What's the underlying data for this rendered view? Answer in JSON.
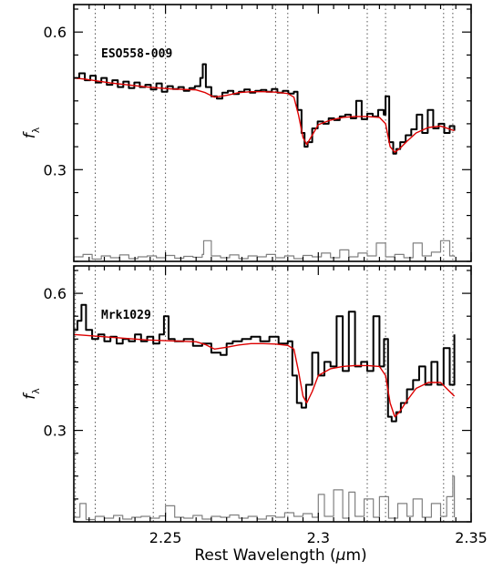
{
  "chart_data": [
    {
      "type": "line",
      "label": "ESO558-009",
      "ylabel": "fλ",
      "ylabel_main": "f",
      "ylabel_sub": "λ",
      "xlim": [
        2.22,
        2.35
      ],
      "ylim": [
        0.1,
        0.66
      ],
      "yticks": [
        0.3,
        0.6
      ],
      "ytick_labels": [
        "0.3",
        "0.6"
      ],
      "vlines": [
        2.227,
        2.246,
        2.25,
        2.286,
        2.29,
        2.316,
        2.322,
        2.341,
        2.344
      ],
      "series": [
        {
          "color": "#000000",
          "x": [
            2.22,
            2.2218,
            2.2236,
            2.2254,
            2.2272,
            2.229,
            2.2308,
            2.2326,
            2.2344,
            2.2362,
            2.238,
            2.2398,
            2.2416,
            2.2434,
            2.2452,
            2.247,
            2.2488,
            2.2506,
            2.2524,
            2.2542,
            2.256,
            2.2578,
            2.2596,
            2.2614,
            2.2622,
            2.2632,
            2.265,
            2.2668,
            2.2686,
            2.2704,
            2.2722,
            2.274,
            2.2758,
            2.2776,
            2.2794,
            2.2812,
            2.283,
            2.2848,
            2.2866,
            2.2884,
            2.2902,
            2.292,
            2.2932,
            2.2945,
            2.2955,
            2.2965,
            2.298,
            2.2998,
            2.3016,
            2.3034,
            2.3052,
            2.307,
            2.3088,
            2.3106,
            2.3124,
            2.3142,
            2.316,
            2.3178,
            2.3196,
            2.3214,
            2.322,
            2.3232,
            2.3245,
            2.3255,
            2.3268,
            2.3286,
            2.3304,
            2.3322,
            2.334,
            2.3358,
            2.3376,
            2.3394,
            2.3412,
            2.343,
            2.3445
          ],
          "y": [
            0.5,
            0.51,
            0.495,
            0.505,
            0.49,
            0.5,
            0.485,
            0.495,
            0.48,
            0.492,
            0.478,
            0.49,
            0.48,
            0.485,
            0.475,
            0.488,
            0.47,
            0.482,
            0.476,
            0.48,
            0.472,
            0.478,
            0.482,
            0.5,
            0.53,
            0.48,
            0.46,
            0.455,
            0.468,
            0.472,
            0.465,
            0.47,
            0.475,
            0.468,
            0.472,
            0.474,
            0.47,
            0.476,
            0.468,
            0.472,
            0.466,
            0.47,
            0.43,
            0.38,
            0.35,
            0.36,
            0.39,
            0.405,
            0.4,
            0.412,
            0.408,
            0.416,
            0.42,
            0.412,
            0.45,
            0.41,
            0.422,
            0.416,
            0.43,
            0.42,
            0.46,
            0.36,
            0.335,
            0.345,
            0.36,
            0.375,
            0.388,
            0.42,
            0.38,
            0.43,
            0.39,
            0.4,
            0.38,
            0.395,
            0.385
          ]
        },
        {
          "color": "#dd0000",
          "x": [
            2.22,
            2.224,
            2.228,
            2.232,
            2.236,
            2.24,
            2.244,
            2.248,
            2.252,
            2.256,
            2.26,
            2.263,
            2.266,
            2.27,
            2.274,
            2.278,
            2.282,
            2.286,
            2.29,
            2.292,
            2.2935,
            2.295,
            2.2962,
            2.298,
            2.3,
            2.304,
            2.308,
            2.312,
            2.316,
            2.32,
            2.322,
            2.3235,
            2.325,
            2.3265,
            2.329,
            2.332,
            2.336,
            2.34,
            2.3445
          ],
          "y": [
            0.5,
            0.497,
            0.493,
            0.489,
            0.486,
            0.483,
            0.48,
            0.478,
            0.476,
            0.475,
            0.474,
            0.468,
            0.458,
            0.462,
            0.468,
            0.47,
            0.47,
            0.469,
            0.466,
            0.458,
            0.42,
            0.37,
            0.355,
            0.375,
            0.398,
            0.408,
            0.414,
            0.416,
            0.416,
            0.414,
            0.4,
            0.35,
            0.338,
            0.345,
            0.362,
            0.38,
            0.392,
            0.395,
            0.385
          ]
        },
        {
          "color": "#808080",
          "x": [
            2.22,
            2.223,
            2.226,
            2.229,
            2.232,
            2.235,
            2.238,
            2.241,
            2.244,
            2.247,
            2.25,
            2.253,
            2.256,
            2.259,
            2.262,
            2.2625,
            2.265,
            2.268,
            2.271,
            2.274,
            2.277,
            2.28,
            2.283,
            2.286,
            2.289,
            2.292,
            2.295,
            2.298,
            2.301,
            2.304,
            2.307,
            2.31,
            2.313,
            2.316,
            2.319,
            2.322,
            2.325,
            2.328,
            2.331,
            2.334,
            2.337,
            2.34,
            2.343,
            2.3445
          ],
          "y": [
            0.11,
            0.115,
            0.105,
            0.112,
            0.108,
            0.114,
            0.106,
            0.11,
            0.112,
            0.108,
            0.113,
            0.107,
            0.111,
            0.109,
            0.115,
            0.145,
            0.112,
            0.108,
            0.114,
            0.106,
            0.112,
            0.11,
            0.115,
            0.108,
            0.112,
            0.106,
            0.113,
            0.11,
            0.118,
            0.108,
            0.125,
            0.11,
            0.118,
            0.112,
            0.14,
            0.11,
            0.115,
            0.108,
            0.14,
            0.112,
            0.12,
            0.145,
            0.112,
            0.11
          ]
        }
      ]
    },
    {
      "type": "line",
      "label": "Mrk1029",
      "ylabel": "fλ",
      "ylabel_main": "f",
      "ylabel_sub": "λ",
      "xlabel": "Rest Wavelength (μm)",
      "xlabel_main": "Rest Wavelength (",
      "xlabel_mu": "μ",
      "xlabel_tail": "m)",
      "xlim": [
        2.22,
        2.35
      ],
      "xticks": [
        2.25,
        2.3,
        2.35
      ],
      "xtick_labels": [
        "2.25",
        "2.3",
        "2.35"
      ],
      "ylim": [
        0.1,
        0.66
      ],
      "yticks": [
        0.3,
        0.6
      ],
      "ytick_labels": [
        "0.3",
        "0.6"
      ],
      "vlines": [
        2.2205,
        2.227,
        2.246,
        2.25,
        2.286,
        2.29,
        2.316,
        2.322,
        2.341,
        2.344
      ],
      "series": [
        {
          "color": "#000000",
          "x": [
            2.22,
            2.2212,
            2.2225,
            2.224,
            2.226,
            2.228,
            2.23,
            2.232,
            2.234,
            2.236,
            2.238,
            2.24,
            2.242,
            2.244,
            2.246,
            2.248,
            2.2495,
            2.251,
            2.253,
            2.256,
            2.259,
            2.262,
            2.265,
            2.268,
            2.27,
            2.272,
            2.275,
            2.278,
            2.281,
            2.284,
            2.287,
            2.29,
            2.2915,
            2.293,
            2.2945,
            2.296,
            2.298,
            2.3,
            2.302,
            2.304,
            2.306,
            2.308,
            2.31,
            2.312,
            2.314,
            2.316,
            2.318,
            2.32,
            2.3215,
            2.3228,
            2.324,
            2.3255,
            2.327,
            2.329,
            2.331,
            2.333,
            2.335,
            2.337,
            2.339,
            2.341,
            2.343,
            2.3445
          ],
          "y": [
            0.52,
            0.54,
            0.575,
            0.52,
            0.5,
            0.51,
            0.495,
            0.505,
            0.49,
            0.5,
            0.495,
            0.51,
            0.495,
            0.505,
            0.49,
            0.51,
            0.55,
            0.5,
            0.495,
            0.5,
            0.485,
            0.49,
            0.47,
            0.465,
            0.49,
            0.495,
            0.5,
            0.505,
            0.495,
            0.505,
            0.49,
            0.495,
            0.42,
            0.36,
            0.35,
            0.4,
            0.47,
            0.42,
            0.45,
            0.44,
            0.55,
            0.43,
            0.56,
            0.44,
            0.45,
            0.43,
            0.55,
            0.44,
            0.5,
            0.33,
            0.32,
            0.34,
            0.36,
            0.39,
            0.41,
            0.44,
            0.4,
            0.45,
            0.4,
            0.48,
            0.4,
            0.51
          ]
        },
        {
          "color": "#dd0000",
          "x": [
            2.22,
            2.224,
            2.228,
            2.232,
            2.236,
            2.24,
            2.244,
            2.248,
            2.252,
            2.256,
            2.26,
            2.263,
            2.266,
            2.27,
            2.274,
            2.278,
            2.282,
            2.286,
            2.29,
            2.292,
            2.2935,
            2.295,
            2.2962,
            2.298,
            2.3,
            2.304,
            2.308,
            2.312,
            2.316,
            2.32,
            2.322,
            2.3235,
            2.325,
            2.3265,
            2.329,
            2.332,
            2.336,
            2.34,
            2.3445
          ],
          "y": [
            0.51,
            0.508,
            0.506,
            0.504,
            0.502,
            0.5,
            0.498,
            0.497,
            0.496,
            0.495,
            0.494,
            0.488,
            0.478,
            0.482,
            0.487,
            0.49,
            0.49,
            0.489,
            0.486,
            0.478,
            0.43,
            0.375,
            0.36,
            0.385,
            0.42,
            0.435,
            0.44,
            0.442,
            0.442,
            0.44,
            0.42,
            0.36,
            0.33,
            0.34,
            0.365,
            0.392,
            0.405,
            0.405,
            0.375
          ]
        },
        {
          "color": "#808080",
          "x": [
            2.22,
            2.222,
            2.224,
            2.227,
            2.23,
            2.233,
            2.236,
            2.239,
            2.242,
            2.245,
            2.248,
            2.25,
            2.253,
            2.256,
            2.259,
            2.262,
            2.265,
            2.268,
            2.271,
            2.274,
            2.277,
            2.28,
            2.283,
            2.286,
            2.289,
            2.292,
            2.295,
            2.298,
            2.3,
            2.302,
            2.305,
            2.308,
            2.31,
            2.312,
            2.315,
            2.318,
            2.32,
            2.323,
            2.326,
            2.329,
            2.331,
            2.334,
            2.337,
            2.34,
            2.342,
            2.344,
            2.3445
          ],
          "y": [
            0.11,
            0.14,
            0.105,
            0.112,
            0.108,
            0.114,
            0.106,
            0.11,
            0.112,
            0.108,
            0.113,
            0.135,
            0.11,
            0.108,
            0.114,
            0.106,
            0.112,
            0.11,
            0.115,
            0.108,
            0.112,
            0.106,
            0.113,
            0.11,
            0.12,
            0.112,
            0.118,
            0.11,
            0.16,
            0.112,
            0.17,
            0.108,
            0.165,
            0.112,
            0.15,
            0.11,
            0.155,
            0.108,
            0.14,
            0.112,
            0.15,
            0.11,
            0.14,
            0.112,
            0.155,
            0.2,
            0.11
          ]
        }
      ]
    }
  ]
}
